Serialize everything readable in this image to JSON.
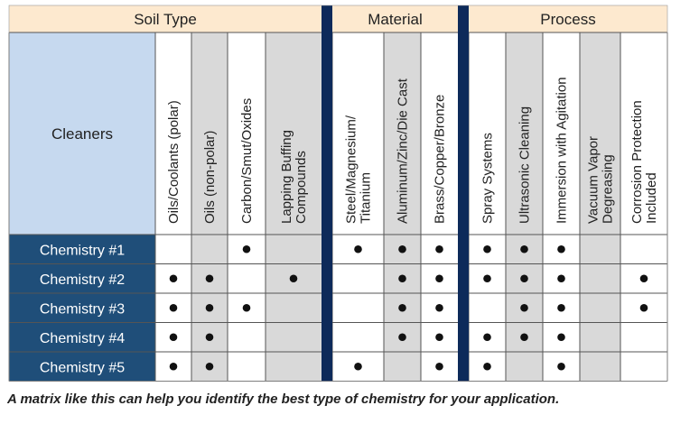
{
  "groups": [
    {
      "label": "Soil Type"
    },
    {
      "label": "Material"
    },
    {
      "label": "Process"
    }
  ],
  "corner_label": "Cleaners",
  "columns": [
    {
      "lines": [
        "Oils/Coolants (polar)"
      ],
      "group": 0
    },
    {
      "lines": [
        "Oils (non-polar)"
      ],
      "group": 0
    },
    {
      "lines": [
        "Carbon/Smut/Oxides"
      ],
      "group": 0
    },
    {
      "lines": [
        "Lapping Buffing",
        "Compounds"
      ],
      "group": 0
    },
    {
      "lines": [
        "Steel/Magnesium/",
        "Titanium"
      ],
      "group": 1
    },
    {
      "lines": [
        "Aluminum/Zinc/Die Cast"
      ],
      "group": 1
    },
    {
      "lines": [
        "Brass/Copper/Bronze"
      ],
      "group": 1
    },
    {
      "lines": [
        "Spray Systems"
      ],
      "group": 2
    },
    {
      "lines": [
        "Ultrasonic Cleaning"
      ],
      "group": 2
    },
    {
      "lines": [
        "Immersion with Agitation"
      ],
      "group": 2
    },
    {
      "lines": [
        "Vacuum Vapor",
        "Degreasing"
      ],
      "group": 2
    },
    {
      "lines": [
        "Corrosion Protection",
        "Included"
      ],
      "group": 2
    }
  ],
  "rows": [
    {
      "label": "Chemistry #1",
      "marks": [
        0,
        0,
        1,
        0,
        1,
        1,
        1,
        1,
        1,
        1,
        0,
        0
      ]
    },
    {
      "label": "Chemistry #2",
      "marks": [
        1,
        1,
        0,
        1,
        0,
        1,
        1,
        1,
        1,
        1,
        0,
        1
      ]
    },
    {
      "label": "Chemistry #3",
      "marks": [
        1,
        1,
        1,
        0,
        0,
        1,
        1,
        0,
        1,
        1,
        0,
        1
      ]
    },
    {
      "label": "Chemistry #4",
      "marks": [
        1,
        1,
        0,
        0,
        0,
        1,
        1,
        1,
        1,
        1,
        0,
        0
      ]
    },
    {
      "label": "Chemistry #5",
      "marks": [
        1,
        1,
        0,
        0,
        1,
        0,
        1,
        1,
        0,
        1,
        0,
        0
      ]
    }
  ],
  "mark_glyph": "•",
  "caption": "A matrix like this can help you identify the best type of chemistry for your application.",
  "colors": {
    "group_header_bg": "#fde9cf",
    "corner_bg": "#c6d9ef",
    "row_label_bg": "#1f4e79",
    "row_label_text": "#ffffff",
    "shaded_column_bg": "#d9d9d9",
    "plain_column_bg": "#ffffff",
    "divider": "#0d2a5a",
    "grid": "#555555",
    "text": "#222222"
  }
}
